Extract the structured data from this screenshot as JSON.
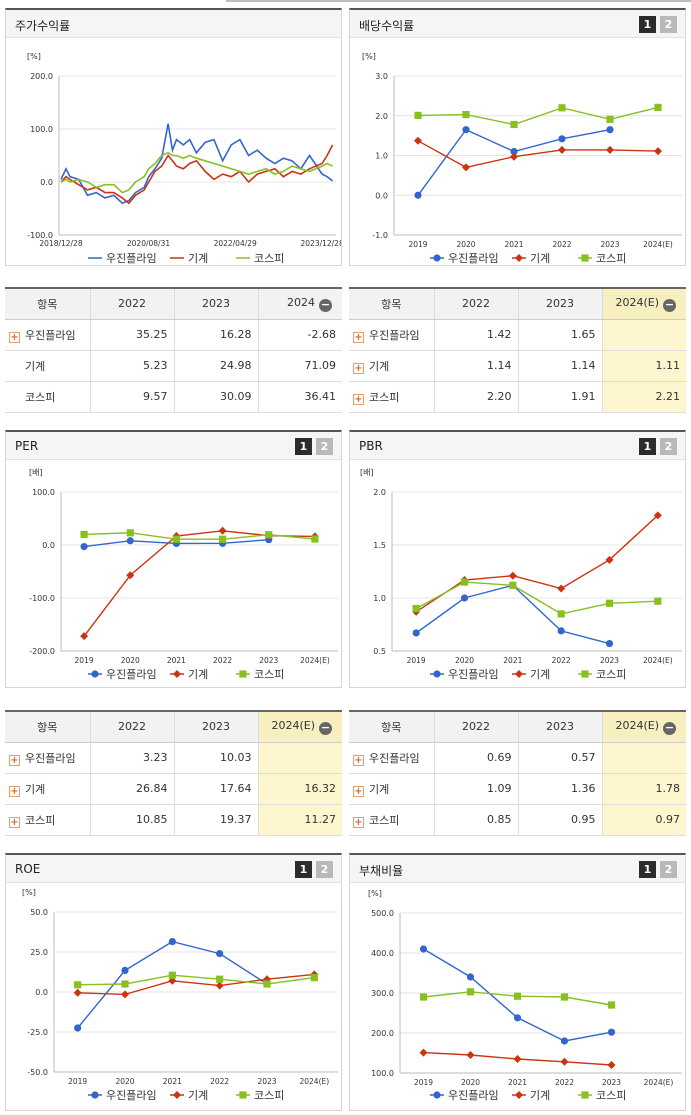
{
  "colors": {
    "woojin": "#3366cc",
    "machine": "#cc3311",
    "kospi": "#88c022",
    "highlight": "#fdf6cf"
  },
  "pager": [
    "1",
    "2"
  ],
  "charts": {
    "stock": {
      "title": "주가수익률",
      "unit": "[%]",
      "y_ticks": [
        "200.0",
        "100.0",
        "0.0",
        "-100.0"
      ],
      "x_ticks": [
        "2018/12/28",
        "2020/08/31",
        "2022/04/29",
        "2023/12/28"
      ],
      "legend": [
        "우진플라임",
        "기계",
        "코스피"
      ]
    },
    "dividend": {
      "title": "배당수익률",
      "unit": "[%]",
      "y_ticks": [
        "3.0",
        "2.0",
        "1.0",
        "0.0",
        "-1.0"
      ],
      "x_ticks": [
        "2019",
        "2020",
        "2021",
        "2022",
        "2023",
        "2024(E)"
      ],
      "legend": [
        "우진플라임",
        "기계",
        "코스피"
      ]
    },
    "per": {
      "title": "PER",
      "unit": "[배]",
      "y_ticks": [
        "100.0",
        "0.0",
        "-100.0",
        "-200.0"
      ],
      "x_ticks": [
        "2019",
        "2020",
        "2021",
        "2022",
        "2023",
        "2024(E)"
      ],
      "legend": [
        "우진플라임",
        "기계",
        "코스피"
      ]
    },
    "pbr": {
      "title": "PBR",
      "unit": "[배]",
      "y_ticks": [
        "2.0",
        "1.5",
        "1.0",
        "0.5"
      ],
      "x_ticks": [
        "2019",
        "2020",
        "2021",
        "2022",
        "2023",
        "2024(E)"
      ],
      "legend": [
        "우진플라임",
        "기계",
        "코스피"
      ]
    },
    "roe": {
      "title": "ROE",
      "unit": "[%]",
      "y_ticks": [
        "50.0",
        "25.0",
        "0.0",
        "-25.0",
        "-50.0"
      ],
      "x_ticks": [
        "2019",
        "2020",
        "2021",
        "2022",
        "2023",
        "2024(E)"
      ],
      "legend": [
        "우진플라임",
        "기계",
        "코스피"
      ]
    },
    "debt": {
      "title": "부채비율",
      "unit": "[%]",
      "y_ticks": [
        "500.0",
        "400.0",
        "300.0",
        "200.0",
        "100.0"
      ],
      "x_ticks": [
        "2019",
        "2020",
        "2021",
        "2022",
        "2023",
        "2024(E)"
      ],
      "legend": [
        "우진플라임",
        "기계",
        "코스피"
      ]
    }
  },
  "tables": {
    "stock": {
      "header": [
        "항목",
        "2022",
        "2023",
        "2024"
      ],
      "rows": [
        [
          "우진플라임",
          "35.25",
          "16.28",
          "-2.68"
        ],
        [
          "기계",
          "5.23",
          "24.98",
          "71.09"
        ],
        [
          "코스피",
          "9.57",
          "30.09",
          "36.41"
        ]
      ]
    },
    "dividend": {
      "header": [
        "항목",
        "2022",
        "2023",
        "2024(E)"
      ],
      "rows": [
        [
          "우진플라임",
          "1.42",
          "1.65",
          ""
        ],
        [
          "기계",
          "1.14",
          "1.14",
          "1.11"
        ],
        [
          "코스피",
          "2.20",
          "1.91",
          "2.21"
        ]
      ]
    },
    "per": {
      "header": [
        "항목",
        "2022",
        "2023",
        "2024(E)"
      ],
      "rows": [
        [
          "우진플라임",
          "3.23",
          "10.03",
          ""
        ],
        [
          "기계",
          "26.84",
          "17.64",
          "16.32"
        ],
        [
          "코스피",
          "10.85",
          "19.37",
          "11.27"
        ]
      ]
    },
    "pbr": {
      "header": [
        "항목",
        "2022",
        "2023",
        "2024(E)"
      ],
      "rows": [
        [
          "우진플라임",
          "0.69",
          "0.57",
          ""
        ],
        [
          "기계",
          "1.09",
          "1.36",
          "1.78"
        ],
        [
          "코스피",
          "0.85",
          "0.95",
          "0.97"
        ]
      ]
    }
  },
  "chart_data": [
    {
      "type": "line",
      "title": "주가수익률",
      "ylabel": "[%]",
      "ylim": [
        -100,
        200
      ],
      "x": [
        "2018-12-28",
        "2019-02-01",
        "2019-03-01",
        "2019-05-01",
        "2019-07-01",
        "2019-09-01",
        "2019-11-01",
        "2020-01-01",
        "2020-03-01",
        "2020-04-15",
        "2020-06-01",
        "2020-08-01",
        "2020-09-01",
        "2020-10-15",
        "2020-12-01",
        "2021-01-15",
        "2021-02-15",
        "2021-03-15",
        "2021-05-01",
        "2021-06-15",
        "2021-08-01",
        "2021-10-01",
        "2021-12-01",
        "2022-02-01",
        "2022-04-01",
        "2022-06-01",
        "2022-08-01",
        "2022-10-01",
        "2022-12-01",
        "2023-02-01",
        "2023-04-01",
        "2023-06-01",
        "2023-08-01",
        "2023-10-01",
        "2023-12-28",
        "2024-02-01",
        "2024-03-10"
      ],
      "series": [
        {
          "name": "우진플라임",
          "values": [
            5,
            25,
            10,
            5,
            -25,
            -20,
            -30,
            -25,
            -40,
            -35,
            -20,
            -10,
            10,
            25,
            45,
            110,
            60,
            80,
            70,
            80,
            55,
            75,
            80,
            40,
            70,
            80,
            50,
            60,
            45,
            35,
            45,
            40,
            25,
            50,
            15,
            10,
            2
          ]
        },
        {
          "name": "기계",
          "values": [
            0,
            10,
            5,
            -5,
            -15,
            -10,
            -20,
            -20,
            -30,
            -40,
            -25,
            -15,
            0,
            20,
            30,
            50,
            40,
            30,
            25,
            35,
            40,
            20,
            5,
            15,
            10,
            20,
            0,
            15,
            20,
            25,
            10,
            20,
            15,
            25,
            35,
            50,
            70
          ]
        },
        {
          "name": "코스피",
          "values": [
            0,
            5,
            0,
            5,
            0,
            -10,
            -5,
            -5,
            -20,
            -15,
            0,
            10,
            25,
            35,
            50,
            55,
            50,
            50,
            45,
            50,
            45,
            40,
            35,
            30,
            25,
            20,
            15,
            20,
            25,
            15,
            20,
            30,
            25,
            20,
            30,
            35,
            30
          ]
        }
      ]
    },
    {
      "type": "line",
      "title": "배당수익률",
      "ylabel": "[%]",
      "ylim": [
        -1,
        3
      ],
      "x": [
        "2019",
        "2020",
        "2021",
        "2022",
        "2023",
        "2024(E)"
      ],
      "series": [
        {
          "name": "우진플라임",
          "values": [
            0.0,
            1.65,
            1.1,
            1.42,
            1.65,
            null
          ]
        },
        {
          "name": "기계",
          "values": [
            1.37,
            0.7,
            0.97,
            1.14,
            1.14,
            1.11
          ]
        },
        {
          "name": "코스피",
          "values": [
            2.01,
            2.03,
            1.78,
            2.2,
            1.91,
            2.21
          ]
        }
      ]
    },
    {
      "type": "line",
      "title": "PER",
      "ylabel": "[배]",
      "ylim": [
        -200,
        100
      ],
      "x": [
        "2019",
        "2020",
        "2021",
        "2022",
        "2023",
        "2024(E)"
      ],
      "series": [
        {
          "name": "우진플라임",
          "values": [
            -3,
            8,
            3,
            3.23,
            10.03,
            null
          ]
        },
        {
          "name": "기계",
          "values": [
            -172,
            -57,
            17,
            26.84,
            17.64,
            16.32
          ]
        },
        {
          "name": "코스피",
          "values": [
            20,
            23,
            11,
            10.85,
            19.37,
            11.27
          ]
        }
      ]
    },
    {
      "type": "line",
      "title": "PBR",
      "ylabel": "[배]",
      "ylim": [
        0.5,
        2.0
      ],
      "x": [
        "2019",
        "2020",
        "2021",
        "2022",
        "2023",
        "2024(E)"
      ],
      "series": [
        {
          "name": "우진플라임",
          "values": [
            0.67,
            1.0,
            1.12,
            0.69,
            0.57,
            null
          ]
        },
        {
          "name": "기계",
          "values": [
            0.87,
            1.17,
            1.21,
            1.09,
            1.36,
            1.78
          ]
        },
        {
          "name": "코스피",
          "values": [
            0.9,
            1.15,
            1.12,
            0.85,
            0.95,
            0.97
          ]
        }
      ]
    },
    {
      "type": "line",
      "title": "ROE",
      "ylabel": "[%]",
      "ylim": [
        -50,
        50
      ],
      "x": [
        "2019",
        "2020",
        "2021",
        "2022",
        "2023",
        "2024(E)"
      ],
      "series": [
        {
          "name": "우진플라임",
          "values": [
            -22.5,
            13.5,
            31.5,
            24,
            5,
            null
          ]
        },
        {
          "name": "기계",
          "values": [
            -0.5,
            -1.5,
            7,
            4,
            8,
            11
          ]
        },
        {
          "name": "코스피",
          "values": [
            4.5,
            5,
            10.5,
            8,
            5,
            9
          ]
        }
      ]
    },
    {
      "type": "line",
      "title": "부채비율",
      "ylabel": "[%]",
      "ylim": [
        100,
        500
      ],
      "x": [
        "2019",
        "2020",
        "2021",
        "2022",
        "2023",
        "2024(E)"
      ],
      "series": [
        {
          "name": "우진플라임",
          "values": [
            410,
            340,
            238,
            180,
            202,
            null
          ]
        },
        {
          "name": "기계",
          "values": [
            151,
            145,
            135,
            128,
            120,
            null
          ]
        },
        {
          "name": "코스피",
          "values": [
            290,
            303,
            292,
            290,
            270,
            null
          ]
        }
      ]
    }
  ]
}
